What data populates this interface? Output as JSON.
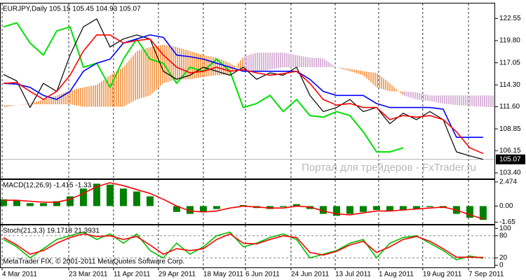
{
  "chart_data": [
    {
      "type": "ichimoku",
      "title": "EURJPY,Daily  105.15 105.45 104.93 105.07",
      "watermark": "Портал для трейдеров - FxTrader.ru",
      "x": [
        0,
        1,
        2,
        3,
        4,
        5,
        6,
        7,
        8,
        9,
        10,
        11,
        12,
        13,
        14,
        15,
        16,
        17,
        18,
        19,
        20,
        21,
        22,
        23,
        24,
        25,
        26,
        27,
        28,
        29,
        30,
        31,
        32,
        33,
        34,
        35,
        36,
        37
      ],
      "xlim": [
        -0.26,
        36.9
      ],
      "xticks": [
        {
          "value": -0.1,
          "label": "4 Mar 2011"
        },
        {
          "value": 4.9,
          "label": "23 Mar 2011"
        },
        {
          "value": 8.26,
          "label": "11 Apr 2011"
        },
        {
          "value": 11.63,
          "label": "29 Apr 2011"
        },
        {
          "value": 15.0,
          "label": "18 May 2011"
        },
        {
          "value": 18.16,
          "label": "6 Jun 2011"
        },
        {
          "value": 21.58,
          "label": "24 Jun 2011"
        },
        {
          "value": 24.9,
          "label": "13 Jul 2011"
        },
        {
          "value": 28.16,
          "label": "1 Aug 2011"
        },
        {
          "value": 31.47,
          "label": "19 Aug 2011"
        },
        {
          "value": 34.9,
          "label": "7 Sep 2011"
        }
      ],
      "ylim": [
        102.7,
        124.4
      ],
      "yticks": [
        122.55,
        {
          "value": 119.8,
          "label": "119.80"
        },
        117.05,
        {
          "value": 114.3,
          "label": "114.30"
        },
        {
          "value": 111.6,
          "label": "111.60"
        },
        108.85,
        106.15,
        {
          "value": 103.4,
          "label": "103.40"
        }
      ],
      "current_price": 105.07,
      "close": {
        "color": "#000000",
        "values": [
          115.6,
          114.8,
          111.5,
          114.5,
          113.5,
          118.0,
          121.5,
          122.5,
          119.0,
          120.0,
          120.5,
          120.0,
          116.0,
          115.0,
          115.5,
          116.5,
          116.0,
          115.5,
          116.5,
          115.0,
          115.8,
          115.5,
          116.5,
          113.0,
          111.0,
          111.5,
          112.5,
          111.0,
          111.5,
          109.5,
          110.8,
          110.0,
          111.0,
          110.0,
          106.0,
          105.5,
          105.07,
          null
        ]
      },
      "tenkan": {
        "color": "#ff0000",
        "values": [
          114.5,
          114.6,
          113.5,
          112.5,
          113.5,
          115.5,
          118.5,
          120.5,
          120.5,
          119.5,
          119.8,
          120.0,
          118.0,
          116.5,
          115.8,
          116.0,
          116.5,
          116.0,
          116.2,
          115.8,
          115.5,
          115.7,
          116.0,
          114.5,
          112.5,
          111.8,
          112.0,
          111.5,
          111.5,
          110.0,
          110.5,
          110.3,
          110.5,
          110.0,
          108.5,
          106.5,
          105.8,
          null
        ]
      },
      "kijun": {
        "color": "#0000ff",
        "values": [
          114.5,
          114.4,
          114.0,
          113.0,
          112.5,
          113.5,
          116.0,
          117.0,
          117.5,
          119.5,
          120.0,
          120.5,
          120.2,
          118.0,
          117.8,
          117.5,
          117.0,
          116.5,
          116.0,
          116.0,
          116.0,
          116.0,
          116.0,
          115.0,
          113.5,
          113.0,
          113.0,
          113.0,
          112.0,
          111.5,
          111.5,
          111.5,
          111.5,
          111.3,
          107.8,
          107.8,
          107.8,
          null
        ]
      },
      "chikou": {
        "color": "#00e000",
        "values": [
          121.5,
          122.0,
          119.5,
          118.0,
          121.0,
          121.5,
          116.5,
          117.0,
          114.0,
          117.5,
          120.0,
          117.5,
          117.0,
          114.5,
          116.5,
          116.0,
          117.5,
          116.0,
          111.5,
          112.0,
          113.0,
          111.0,
          112.5,
          110.5,
          110.3,
          111.0,
          110.5,
          108.5,
          106.0,
          106.0,
          106.5,
          null,
          null,
          null,
          null,
          null,
          null,
          null
        ]
      },
      "cloud": {
        "up_color": "#f4a460",
        "down_color": "#d8b4d8",
        "span_a": [
          111.8,
          111.8,
          112.0,
          112.5,
          113.0,
          113.6,
          114.0,
          114.3,
          115.5,
          116.5,
          118.5,
          119.0,
          119.3,
          119.0,
          118.5,
          118.0,
          117.7,
          117.0,
          116.0,
          116.0,
          116.2,
          116.5,
          116.5,
          116.5,
          116.5,
          116.5,
          116.3,
          116.0,
          115.8,
          114.5,
          113.0,
          112.5,
          112.3,
          112.0,
          111.8,
          111.7,
          111.6,
          111.5
        ],
        "span_b": [
          111.5,
          111.8,
          111.9,
          111.9,
          111.9,
          111.9,
          111.6,
          111.6,
          111.6,
          111.6,
          112.5,
          113.0,
          114.5,
          115.0,
          115.0,
          115.3,
          115.5,
          115.6,
          117.8,
          118.3,
          118.3,
          118.3,
          118.0,
          117.7,
          117.6,
          116.5,
          116.0,
          115.5,
          114.0,
          113.5,
          113.5,
          113.4,
          113.0,
          113.0,
          113.0,
          113.0,
          113.0,
          113.0
        ]
      }
    },
    {
      "type": "macd",
      "title": "MACD(12,26,9) -1.415 -1.33",
      "ylim": [
        -1.84,
        2.69
      ],
      "yticks": [
        2.474,
        {
          "value": 0,
          "label": "0.00"
        },
        {
          "value": -1.65,
          "label": "-1.65"
        }
      ],
      "histogram": {
        "color": "#008000",
        "values": [
          0.7,
          0.6,
          0.3,
          0.3,
          0.5,
          1.0,
          1.8,
          2.3,
          2.2,
          1.8,
          1.5,
          1.0,
          0.0,
          -0.6,
          -0.8,
          -0.6,
          -0.3,
          0.0,
          0.1,
          -0.2,
          -0.3,
          -0.1,
          0.2,
          -0.3,
          -0.8,
          -1.0,
          -0.8,
          -0.6,
          -0.4,
          -0.5,
          -0.4,
          -0.3,
          -0.1,
          -0.2,
          -0.8,
          -1.2,
          -1.415,
          null
        ]
      },
      "signal": {
        "color": "#ff0000",
        "values": [
          0.6,
          0.6,
          0.5,
          0.4,
          0.4,
          0.7,
          1.3,
          2.0,
          2.4,
          2.1,
          1.7,
          1.3,
          0.7,
          0.0,
          -0.5,
          -0.6,
          -0.5,
          -0.2,
          0.0,
          -0.1,
          -0.2,
          -0.2,
          0.0,
          -0.1,
          -0.5,
          -0.8,
          -0.9,
          -0.7,
          -0.5,
          -0.5,
          -0.4,
          -0.3,
          -0.2,
          -0.1,
          -0.4,
          -0.9,
          -1.33,
          null
        ]
      }
    },
    {
      "type": "stochastic",
      "title": "Stoch(21,3,3) 19.1718 21.3931",
      "copyright": "MetaTrader FIX, © 2001-2011 MetaQuotes Software Corp.",
      "ylim": [
        -5.6,
        108
      ],
      "yticks": [
        100,
        80,
        20,
        0
      ],
      "levels": [
        80,
        20
      ],
      "main": {
        "color": "#00c000",
        "values": [
          70,
          50,
          20,
          45,
          70,
          80,
          90,
          70,
          85,
          60,
          85,
          40,
          20,
          60,
          30,
          50,
          80,
          90,
          50,
          60,
          75,
          85,
          70,
          20,
          30,
          40,
          60,
          70,
          20,
          60,
          75,
          80,
          60,
          40,
          15,
          25,
          19.17,
          null
        ]
      },
      "signal": {
        "color": "#ff0000",
        "values": [
          75,
          55,
          30,
          40,
          60,
          75,
          85,
          78,
          80,
          70,
          78,
          55,
          30,
          45,
          40,
          45,
          70,
          85,
          60,
          58,
          70,
          80,
          75,
          35,
          28,
          38,
          55,
          65,
          35,
          50,
          70,
          78,
          65,
          45,
          22,
          22,
          21.39,
          null
        ]
      }
    }
  ]
}
